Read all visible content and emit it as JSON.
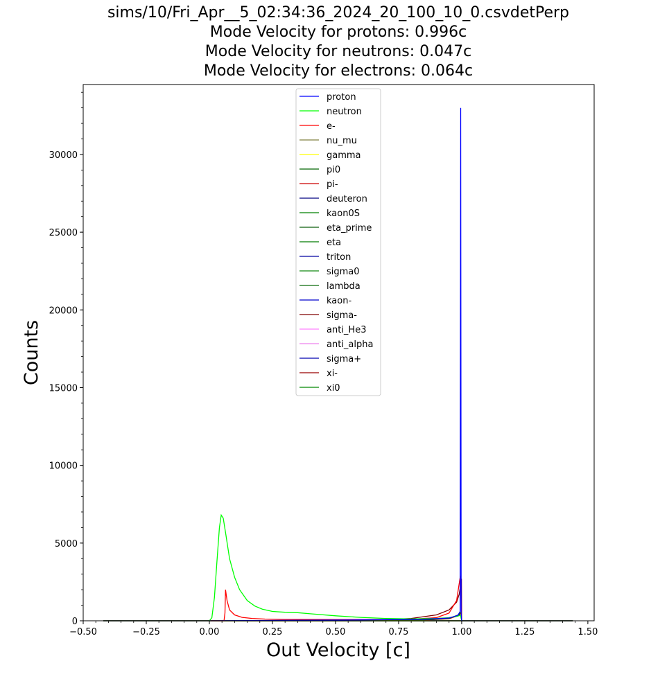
{
  "chart_data": {
    "type": "line",
    "title_lines": [
      "sims/10/Fri_Apr__5_02:34:36_2024_20_100_10_0.csvdetPerp",
      "Mode Velocity for protons: 0.996c",
      "Mode Velocity for neutrons: 0.047c",
      "Mode Velocity for electrons: 0.064c"
    ],
    "xlabel": "Out Velocity [c]",
    "ylabel": "Counts",
    "xlim": [
      -0.5,
      1.525
    ],
    "ylim": [
      0,
      34500
    ],
    "xticks": [
      -0.5,
      -0.25,
      0.0,
      0.25,
      0.5,
      0.75,
      1.0,
      1.25,
      1.5
    ],
    "xtick_labels": [
      "−0.50",
      "−0.25",
      "0.00",
      "0.25",
      "0.50",
      "0.75",
      "1.00",
      "1.25",
      "1.50"
    ],
    "yticks": [
      0,
      5000,
      10000,
      15000,
      20000,
      25000,
      30000
    ],
    "ytick_labels": [
      "0",
      "5000",
      "10000",
      "15000",
      "20000",
      "25000",
      "30000"
    ],
    "grid": false,
    "legend_position": "top-center",
    "series": [
      {
        "name": "proton",
        "color": "#0000ff",
        "x": [
          -0.42,
          0.0,
          0.3,
          0.6,
          0.85,
          0.95,
          0.985,
          0.994,
          0.996,
          0.998,
          1.0,
          1.2,
          1.44
        ],
        "y": [
          0,
          0,
          30,
          60,
          100,
          180,
          350,
          600,
          33000,
          500,
          0,
          0,
          0
        ]
      },
      {
        "name": "neutron",
        "color": "#00ff00",
        "x": [
          -0.42,
          0.0,
          0.01,
          0.02,
          0.03,
          0.04,
          0.047,
          0.055,
          0.065,
          0.08,
          0.1,
          0.12,
          0.15,
          0.18,
          0.21,
          0.25,
          0.3,
          0.35,
          0.4,
          0.5,
          0.6,
          0.7,
          0.8,
          0.9,
          0.95,
          0.98,
          0.995,
          1.0,
          1.2,
          1.44
        ],
        "y": [
          0,
          0,
          200,
          1500,
          3800,
          6000,
          6800,
          6600,
          5600,
          4000,
          2800,
          2000,
          1300,
          950,
          750,
          600,
          550,
          520,
          450,
          320,
          220,
          150,
          120,
          150,
          200,
          280,
          350,
          0,
          0,
          0
        ]
      },
      {
        "name": "e-",
        "color": "#ff0000",
        "x": [
          -0.42,
          0.058,
          0.062,
          0.064,
          0.07,
          0.08,
          0.1,
          0.13,
          0.17,
          0.22,
          0.3,
          0.5,
          0.7,
          0.8,
          0.9,
          0.95,
          0.98,
          0.995,
          1.0,
          1.2,
          1.44
        ],
        "y": [
          0,
          0,
          500,
          2000,
          1300,
          700,
          380,
          220,
          150,
          110,
          90,
          80,
          80,
          100,
          200,
          500,
          1300,
          2900,
          0,
          0,
          0
        ]
      },
      {
        "name": "nu_mu",
        "color": "#808040",
        "x": [
          -0.42,
          1.44
        ],
        "y": [
          0,
          0
        ]
      },
      {
        "name": "gamma",
        "color": "#ffff00",
        "x": [
          -0.42,
          1.44
        ],
        "y": [
          0,
          0
        ]
      },
      {
        "name": "pi0",
        "color": "#006400",
        "x": [
          -0.42,
          0.5,
          0.85,
          0.95,
          0.99,
          0.999,
          1.0,
          1.44
        ],
        "y": [
          0,
          0,
          50,
          150,
          400,
          600,
          0,
          0
        ]
      },
      {
        "name": "pi-",
        "color": "#cc0000",
        "x": [
          -0.42,
          0.5,
          0.85,
          0.95,
          0.99,
          0.999,
          1.0,
          1.44
        ],
        "y": [
          0,
          0,
          40,
          130,
          350,
          500,
          0,
          0
        ]
      },
      {
        "name": "deuteron",
        "color": "#000080",
        "x": [
          -0.42,
          0.2,
          0.5,
          0.8,
          1.0,
          1.44
        ],
        "y": [
          0,
          0,
          20,
          10,
          0,
          0
        ]
      },
      {
        "name": "kaon0S",
        "color": "#008000",
        "x": [
          -0.42,
          1.44
        ],
        "y": [
          0,
          0
        ]
      },
      {
        "name": "eta_prime",
        "color": "#0b5e0b",
        "x": [
          -0.42,
          1.44
        ],
        "y": [
          0,
          0
        ]
      },
      {
        "name": "eta",
        "color": "#007a00",
        "x": [
          -0.42,
          1.44
        ],
        "y": [
          0,
          0
        ]
      },
      {
        "name": "triton",
        "color": "#0000a0",
        "x": [
          -0.42,
          1.44
        ],
        "y": [
          0,
          0
        ]
      },
      {
        "name": "sigma0",
        "color": "#118811",
        "x": [
          -0.42,
          1.44
        ],
        "y": [
          0,
          0
        ]
      },
      {
        "name": "lambda",
        "color": "#0a6a0a",
        "x": [
          -0.42,
          1.44
        ],
        "y": [
          0,
          0
        ]
      },
      {
        "name": "kaon-",
        "color": "#0000cc",
        "x": [
          -0.42,
          1.44
        ],
        "y": [
          0,
          0
        ]
      },
      {
        "name": "sigma-",
        "color": "#800000",
        "x": [
          -0.42,
          0.6,
          0.8,
          0.9,
          0.95,
          0.98,
          0.99,
          0.995,
          0.999,
          1.0,
          1.44
        ],
        "y": [
          0,
          0,
          150,
          380,
          700,
          1200,
          1700,
          2200,
          2700,
          0,
          0
        ]
      },
      {
        "name": "anti_He3",
        "color": "#ff80ff",
        "x": [
          -0.42,
          1.44
        ],
        "y": [
          0,
          0
        ]
      },
      {
        "name": "anti_alpha",
        "color": "#ee82ee",
        "x": [
          -0.42,
          1.44
        ],
        "y": [
          0,
          0
        ]
      },
      {
        "name": "sigma+",
        "color": "#0000b0",
        "x": [
          -0.42,
          1.44
        ],
        "y": [
          0,
          0
        ]
      },
      {
        "name": "xi-",
        "color": "#990000",
        "x": [
          -0.42,
          1.44
        ],
        "y": [
          0,
          0
        ]
      },
      {
        "name": "xi0",
        "color": "#008800",
        "x": [
          -0.42,
          1.44
        ],
        "y": [
          0,
          0
        ]
      }
    ]
  }
}
